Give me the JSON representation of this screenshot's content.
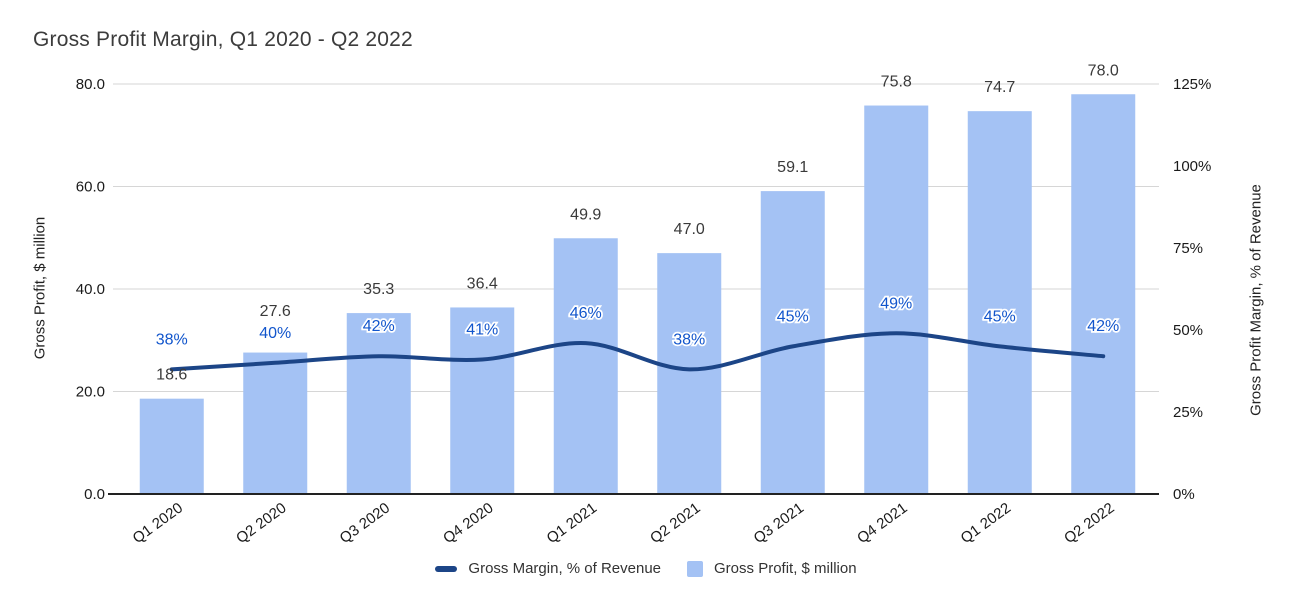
{
  "title": "Gross Profit Margin, Q1 2020 - Q2 2022",
  "chart_data": {
    "type": "bar",
    "subtype": "combo-bar-line-dual-axis",
    "categories": [
      "Q1 2020",
      "Q2 2020",
      "Q3 2020",
      "Q4 2020",
      "Q1 2021",
      "Q2 2021",
      "Q3 2021",
      "Q4 2021",
      "Q1 2022",
      "Q2 2022"
    ],
    "series": [
      {
        "name": "Gross Profit, $ million",
        "type": "bar",
        "axis": "left",
        "values": [
          18.6,
          27.6,
          35.3,
          36.4,
          49.9,
          47.0,
          59.1,
          75.8,
          74.7,
          78.0
        ],
        "labels": [
          "18.6",
          "27.6",
          "35.3",
          "36.4",
          "49.9",
          "47.0",
          "59.1",
          "75.8",
          "74.7",
          "78.0"
        ],
        "color": "#a4c2f4"
      },
      {
        "name": "Gross Margin, % of Revenue",
        "type": "line",
        "axis": "right",
        "values": [
          38,
          40,
          42,
          41,
          46,
          38,
          45,
          49,
          45,
          42
        ],
        "labels": [
          "38%",
          "40%",
          "42%",
          "41%",
          "46%",
          "38%",
          "45%",
          "49%",
          "45%",
          "42%"
        ],
        "color": "#1c4587",
        "label_color": "#1155cc"
      }
    ],
    "left_axis": {
      "title": "Gross Profit, $ million",
      "min": 0,
      "max": 80,
      "tick_values": [
        0,
        20,
        40,
        60,
        80
      ],
      "tick_labels": [
        "0.0",
        "20.0",
        "40.0",
        "60.0",
        "80.0"
      ]
    },
    "right_axis": {
      "title": "Gross Profit Margin, % of Revenue",
      "min": 0,
      "max": 125,
      "tick_values": [
        0,
        25,
        50,
        75,
        100,
        125
      ],
      "tick_labels": [
        "0%",
        "25%",
        "50%",
        "75%",
        "100%",
        "125%"
      ]
    },
    "grid": true,
    "legend_position": "bottom",
    "legend": [
      {
        "label": "Gross Margin, % of Revenue",
        "swatch": "line",
        "color": "#1c4587"
      },
      {
        "label": "Gross Profit, $ million",
        "swatch": "square",
        "color": "#a4c2f4"
      }
    ]
  },
  "colors": {
    "bar_fill": "#a4c2f4",
    "line_stroke": "#1c4587",
    "percent_label": "#1155cc",
    "value_label": "#3a3a3a",
    "gridline": "#d6d6d6",
    "baseline": "#222222",
    "tick_text": "#1a1a1a",
    "title_text": "#3c3c3c"
  }
}
